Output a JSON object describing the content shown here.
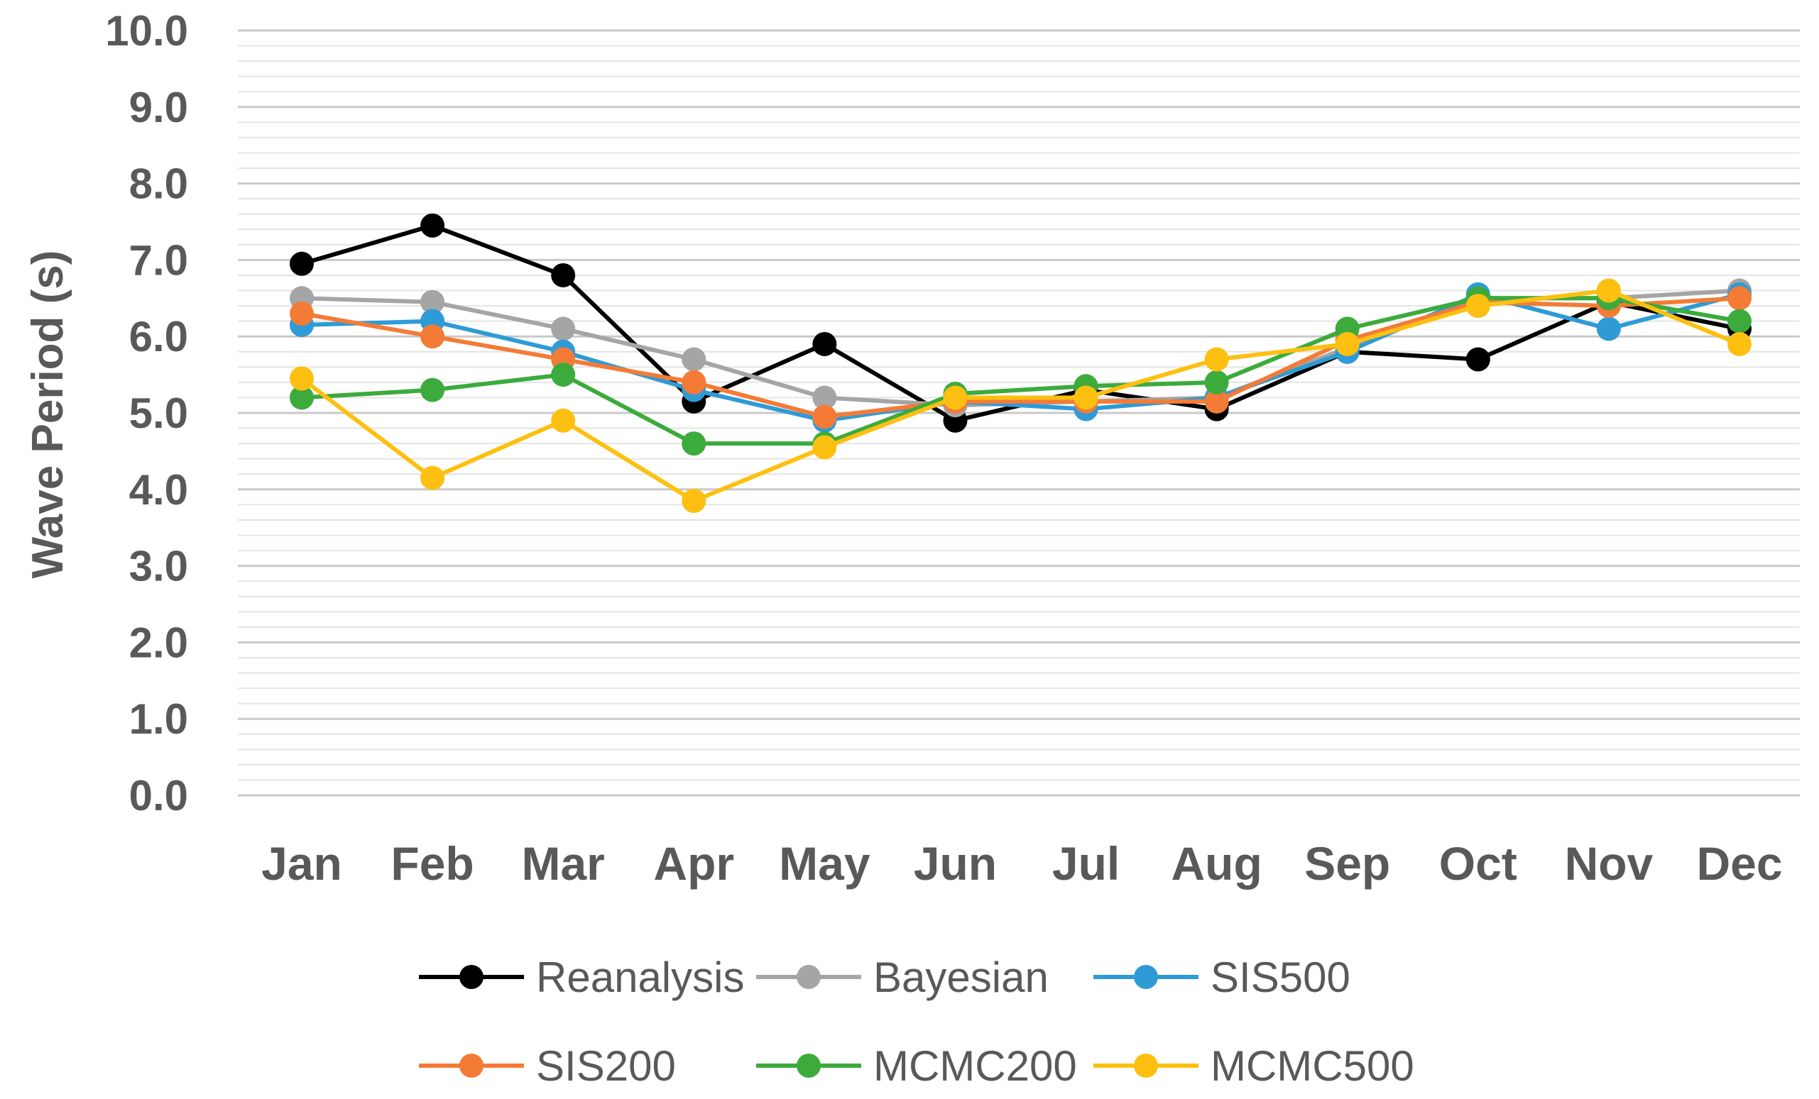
{
  "chart_data": {
    "type": "line",
    "title": "",
    "xlabel": "",
    "ylabel": "Wave Period (s)",
    "ylim": [
      0,
      10
    ],
    "y_ticks": [
      "0.0",
      "1.0",
      "2.0",
      "3.0",
      "4.0",
      "5.0",
      "6.0",
      "7.0",
      "8.0",
      "9.0",
      "10.0"
    ],
    "grid": true,
    "legend_position": "bottom",
    "categories": [
      "Jan",
      "Feb",
      "Mar",
      "Apr",
      "May",
      "Jun",
      "Jul",
      "Aug",
      "Sep",
      "Oct",
      "Nov",
      "Dec"
    ],
    "series": [
      {
        "name": "Reanalysis",
        "color": "#000000",
        "values": [
          6.95,
          7.45,
          6.8,
          5.15,
          5.9,
          4.9,
          5.3,
          5.05,
          5.8,
          5.7,
          6.45,
          6.1
        ]
      },
      {
        "name": "Bayesian",
        "color": "#A5A5A5",
        "values": [
          6.5,
          6.45,
          6.1,
          5.7,
          5.2,
          5.1,
          5.15,
          5.2,
          5.85,
          6.5,
          6.5,
          6.6
        ]
      },
      {
        "name": "SIS500",
        "color": "#2E9BD7",
        "values": [
          6.15,
          6.2,
          5.8,
          5.3,
          4.9,
          5.15,
          5.05,
          5.2,
          5.8,
          6.55,
          6.1,
          6.55
        ]
      },
      {
        "name": "SIS200",
        "color": "#F47B36",
        "values": [
          6.3,
          6.0,
          5.7,
          5.4,
          4.95,
          5.15,
          5.15,
          5.15,
          5.95,
          6.45,
          6.4,
          6.5
        ]
      },
      {
        "name": "MCMC200",
        "color": "#3CAB3C",
        "values": [
          5.2,
          5.3,
          5.5,
          4.6,
          4.6,
          5.25,
          5.35,
          5.4,
          6.1,
          6.5,
          6.5,
          6.2
        ]
      },
      {
        "name": "MCMC500",
        "color": "#FDC010",
        "values": [
          5.45,
          4.15,
          4.9,
          3.85,
          4.55,
          5.2,
          5.2,
          5.7,
          5.9,
          6.4,
          6.6,
          5.9
        ]
      }
    ]
  }
}
